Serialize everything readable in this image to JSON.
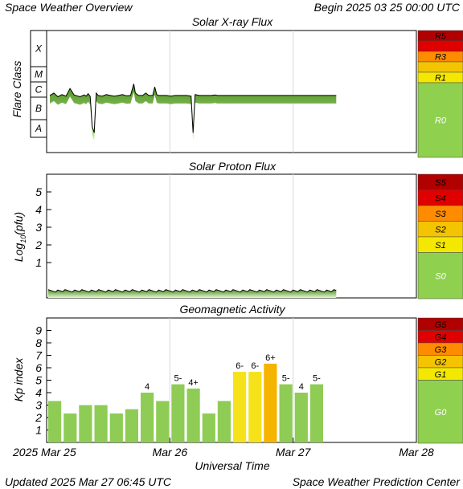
{
  "header": {
    "title": "Space Weather Overview",
    "begin": "Begin 2025 03 25 00:00 UTC"
  },
  "footer": {
    "updated": "Updated 2025 Mar 27 06:45 UTC",
    "credit": "Space Weather Prediction Center"
  },
  "colors": {
    "green": "#8fd14f",
    "yellow": "#f5e800",
    "amber": "#f5c400",
    "orange": "#ff8c00",
    "red": "#e00000",
    "darkred": "#b00000",
    "bar_green": "#8fcc55",
    "bar_yellow": "#f5e21a",
    "bar_orange": "#f5b400"
  },
  "chart_data": [
    {
      "type": "line",
      "title": "Solar X-ray Flux",
      "ylabel": "Flare Class",
      "y_categories": [
        "X",
        "M",
        "C",
        "B",
        "A"
      ],
      "x_range": [
        "2025-03-25",
        "2025-03-28"
      ],
      "series_points": [
        [
          0.0,
          4.22
        ],
        [
          0.1,
          4.3
        ],
        [
          0.2,
          4.18
        ],
        [
          0.3,
          4.25
        ],
        [
          0.4,
          4.2
        ],
        [
          0.5,
          4.45
        ],
        [
          0.6,
          4.24
        ],
        [
          0.75,
          4.18
        ],
        [
          0.85,
          4.24
        ],
        [
          0.9,
          4.2
        ],
        [
          0.95,
          4.28
        ],
        [
          1.0,
          4.19
        ],
        [
          1.05,
          3.2
        ],
        [
          1.1,
          3.0
        ],
        [
          1.15,
          4.3
        ],
        [
          1.2,
          4.22
        ],
        [
          1.3,
          4.2
        ],
        [
          1.4,
          4.25
        ],
        [
          1.5,
          4.22
        ],
        [
          1.6,
          4.2
        ],
        [
          1.7,
          4.22
        ],
        [
          1.8,
          4.25
        ],
        [
          1.9,
          4.21
        ],
        [
          2.0,
          4.22
        ],
        [
          2.08,
          4.6
        ],
        [
          2.12,
          4.3
        ],
        [
          2.2,
          4.22
        ],
        [
          2.3,
          4.22
        ],
        [
          2.38,
          4.3
        ],
        [
          2.45,
          4.22
        ],
        [
          2.55,
          4.22
        ],
        [
          2.6,
          4.5
        ],
        [
          2.65,
          4.25
        ],
        [
          2.7,
          4.22
        ],
        [
          2.8,
          4.22
        ],
        [
          2.9,
          4.22
        ],
        [
          3.0,
          4.2
        ],
        [
          3.1,
          4.22
        ],
        [
          3.2,
          4.22
        ],
        [
          3.3,
          4.22
        ],
        [
          3.4,
          4.22
        ],
        [
          3.5,
          4.2
        ],
        [
          3.55,
          3.0
        ],
        [
          3.6,
          4.25
        ],
        [
          3.7,
          4.22
        ],
        [
          3.8,
          4.22
        ],
        [
          3.9,
          4.22
        ],
        [
          4.0,
          4.22
        ],
        [
          4.1,
          4.24
        ],
        [
          4.15,
          4.22
        ],
        [
          4.25,
          4.22
        ],
        [
          4.35,
          4.22
        ],
        [
          4.45,
          4.22
        ],
        [
          4.5,
          4.22
        ],
        [
          4.55,
          4.22
        ],
        [
          4.65,
          4.22
        ],
        [
          4.75,
          4.22
        ],
        [
          4.85,
          4.22
        ],
        [
          4.95,
          4.22
        ],
        [
          5.0,
          4.22
        ],
        [
          5.05,
          4.22
        ],
        [
          5.1,
          4.22
        ],
        [
          5.2,
          4.22
        ],
        [
          5.3,
          4.22
        ],
        [
          5.4,
          4.22
        ],
        [
          5.45,
          4.22
        ],
        [
          5.5,
          4.22
        ],
        [
          5.55,
          4.22
        ],
        [
          5.65,
          4.22
        ],
        [
          5.75,
          4.22
        ],
        [
          5.85,
          4.22
        ],
        [
          5.95,
          4.22
        ],
        [
          6.0,
          4.22
        ],
        [
          6.1,
          4.22
        ],
        [
          6.2,
          4.22
        ],
        [
          6.3,
          4.22
        ],
        [
          6.4,
          4.22
        ],
        [
          6.45,
          4.22
        ],
        [
          6.5,
          4.22
        ],
        [
          6.55,
          4.22
        ],
        [
          6.6,
          4.22
        ],
        [
          6.7,
          4.22
        ],
        [
          6.8,
          4.22
        ],
        [
          6.9,
          4.22
        ],
        [
          7.0,
          4.22
        ],
        [
          7.1,
          4.22
        ]
      ],
      "scale": [
        {
          "label": "R5",
          "color": "#b00000"
        },
        {
          "label": "",
          "color": "#e00000"
        },
        {
          "label": "R3",
          "color": "#ff8c00"
        },
        {
          "label": "",
          "color": "#f5c400"
        },
        {
          "label": "R1",
          "color": "#f5e800"
        },
        {
          "label": "R0",
          "color": "#8fd14f"
        }
      ]
    },
    {
      "type": "area",
      "title": "Solar Proton Flux",
      "ylabel": "Log10(pfu)",
      "ylabel_main": "Log",
      "ylabel_sub": "10",
      "ylabel_tail": "(pfu)",
      "yticks": [
        "5",
        "4",
        "3",
        "2",
        "1"
      ],
      "ylim": [
        -1,
        6
      ],
      "baseline_value": -0.6,
      "x_range": [
        "2025-03-25",
        "2025-03-28"
      ],
      "scale": [
        {
          "label": "S5",
          "color": "#b00000"
        },
        {
          "label": "S4",
          "color": "#e00000"
        },
        {
          "label": "S3",
          "color": "#ff8c00"
        },
        {
          "label": "S2",
          "color": "#f5c400"
        },
        {
          "label": "S1",
          "color": "#f5e800"
        },
        {
          "label": "S0",
          "color": "#8fd14f"
        }
      ]
    },
    {
      "type": "bar",
      "title": "Geomagnetic Activity",
      "ylabel": "Kp index",
      "xlabel": "Universal Time",
      "yticks": [
        "9",
        "8",
        "7",
        "6",
        "5",
        "4",
        "3",
        "2",
        "1"
      ],
      "ylim": [
        0,
        10
      ],
      "xticks": [
        "2025 Mar 25",
        "Mar 26",
        "Mar 27",
        "Mar 28"
      ],
      "bars": [
        {
          "value": 3.33,
          "label": "",
          "color": "#8fcc55"
        },
        {
          "value": 2.33,
          "label": "",
          "color": "#8fcc55"
        },
        {
          "value": 3.0,
          "label": "",
          "color": "#8fcc55"
        },
        {
          "value": 3.0,
          "label": "",
          "color": "#8fcc55"
        },
        {
          "value": 2.33,
          "label": "",
          "color": "#8fcc55"
        },
        {
          "value": 2.67,
          "label": "",
          "color": "#8fcc55"
        },
        {
          "value": 4.0,
          "label": "4",
          "color": "#8fcc55"
        },
        {
          "value": 3.33,
          "label": "",
          "color": "#8fcc55"
        },
        {
          "value": 4.67,
          "label": "5-",
          "color": "#8fcc55"
        },
        {
          "value": 4.33,
          "label": "4+",
          "color": "#8fcc55"
        },
        {
          "value": 2.33,
          "label": "",
          "color": "#8fcc55"
        },
        {
          "value": 3.33,
          "label": "",
          "color": "#8fcc55"
        },
        {
          "value": 5.67,
          "label": "6-",
          "color": "#f5e21a"
        },
        {
          "value": 5.67,
          "label": "6-",
          "color": "#f5e21a"
        },
        {
          "value": 6.33,
          "label": "6+",
          "color": "#f5b400"
        },
        {
          "value": 4.67,
          "label": "5-",
          "color": "#8fcc55"
        },
        {
          "value": 4.0,
          "label": "4",
          "color": "#8fcc55"
        },
        {
          "value": 4.67,
          "label": "5-",
          "color": "#8fcc55"
        }
      ],
      "scale": [
        {
          "label": "G5",
          "color": "#b00000"
        },
        {
          "label": "G4",
          "color": "#e00000"
        },
        {
          "label": "G3",
          "color": "#ff8c00"
        },
        {
          "label": "G2",
          "color": "#f5c400"
        },
        {
          "label": "G1",
          "color": "#f5e800"
        },
        {
          "label": "G0",
          "color": "#8fd14f"
        }
      ]
    }
  ]
}
